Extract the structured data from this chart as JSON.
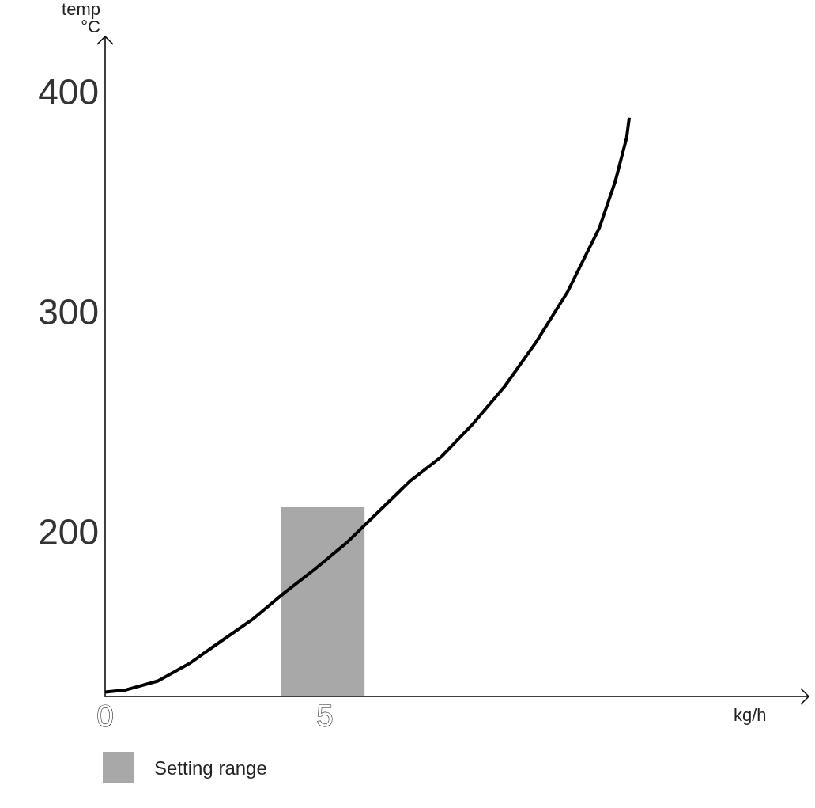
{
  "chart_data": {
    "type": "line",
    "xlabel": "kg/h",
    "ylabel": "temp\n°C",
    "xlim": [
      0,
      16
    ],
    "xticks": [
      0,
      5
    ],
    "ylim": [
      125,
      425
    ],
    "yticks": [
      200,
      300,
      400
    ],
    "grid": false,
    "legend": "bottom left",
    "series": [
      {
        "type": "area",
        "name": "Setting range",
        "color": "#a8a8a8",
        "x": [
          4,
          5.9
        ],
        "values": [
          211,
          211
        ]
      },
      {
        "type": "line",
        "color": "#000000",
        "x": [
          0,
          0.48,
          1.2,
          1.92,
          2.63,
          3.35,
          4.07,
          4.78,
          5.5,
          6.22,
          6.94,
          7.65,
          8.37,
          9.09,
          9.8,
          10.52,
          11.24,
          11.6,
          11.86,
          11.92
        ],
        "values": [
          127,
          128,
          132,
          140,
          150,
          160,
          172,
          183,
          195,
          209,
          223,
          234,
          249,
          266,
          286,
          309,
          338,
          359,
          379,
          388
        ]
      }
    ]
  }
}
